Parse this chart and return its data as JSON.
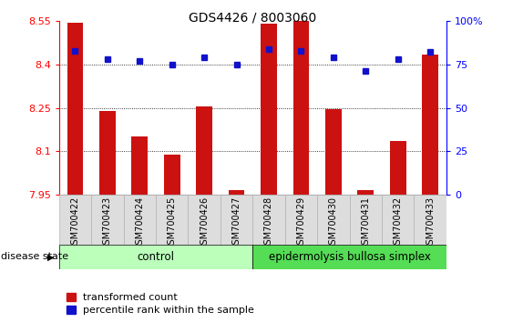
{
  "title": "GDS4426 / 8003060",
  "samples": [
    "GSM700422",
    "GSM700423",
    "GSM700424",
    "GSM700425",
    "GSM700426",
    "GSM700427",
    "GSM700428",
    "GSM700429",
    "GSM700430",
    "GSM700431",
    "GSM700432",
    "GSM700433"
  ],
  "transformed_count": [
    8.545,
    8.24,
    8.15,
    8.09,
    8.255,
    7.965,
    8.54,
    8.55,
    8.245,
    7.965,
    8.135,
    8.435
  ],
  "percentile_rank": [
    83,
    78,
    77,
    75,
    79,
    75,
    84,
    83,
    79,
    71,
    78,
    82
  ],
  "y_min": 7.95,
  "y_max": 8.55,
  "y_ticks": [
    7.95,
    8.1,
    8.25,
    8.4,
    8.55
  ],
  "y2_ticks": [
    0,
    25,
    50,
    75,
    100
  ],
  "bar_color": "#CC1111",
  "dot_color": "#1111CC",
  "control_color": "#BBFFBB",
  "disease_color": "#55DD55",
  "control_samples": 6,
  "control_label": "control",
  "disease_label": "epidermolysis bullosa simplex",
  "legend_bar_label": "transformed count",
  "legend_dot_label": "percentile rank within the sample",
  "disease_state_label": "disease state",
  "title_fontsize": 10,
  "tick_fontsize": 8,
  "label_fontsize": 8.5
}
